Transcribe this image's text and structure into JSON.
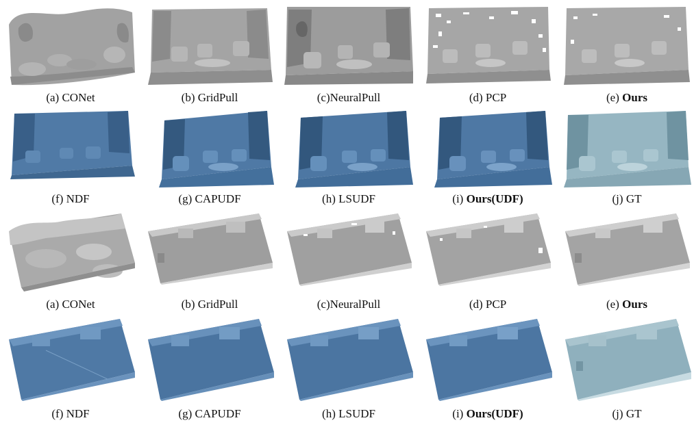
{
  "colors": {
    "gray_mesh": "#9a9a9a",
    "gray_dark": "#6f6f6f",
    "blue_mesh": "#4c76a3",
    "blue_dark": "#2f557e",
    "gt_mesh": "#8fb0bd",
    "gt_dark": "#6a8e9c"
  },
  "rows": [
    {
      "name": "row-1",
      "captions": [
        {
          "prefix": "(a) ",
          "method": "CONet",
          "bold": false
        },
        {
          "prefix": "(b) ",
          "method": "GridPull",
          "bold": false
        },
        {
          "prefix": "(c)",
          "method": "NeuralPull",
          "bold": false
        },
        {
          "prefix": "(d) ",
          "method": "PCP",
          "bold": false
        },
        {
          "prefix": "(e) ",
          "method": "Ours",
          "bold": true
        }
      ]
    },
    {
      "name": "row-2",
      "captions": [
        {
          "prefix": "(f) ",
          "method": "NDF",
          "bold": false
        },
        {
          "prefix": "(g) ",
          "method": "CAPUDF",
          "bold": false
        },
        {
          "prefix": "(h) ",
          "method": "LSUDF",
          "bold": false
        },
        {
          "prefix": "(i) ",
          "method": "Ours(UDF)",
          "bold": true
        },
        {
          "prefix": "(j) ",
          "method": "GT",
          "bold": false
        }
      ]
    },
    {
      "name": "row-3",
      "captions": [
        {
          "prefix": "(a) ",
          "method": "CONet",
          "bold": false
        },
        {
          "prefix": "(b) ",
          "method": "GridPull",
          "bold": false
        },
        {
          "prefix": "(c)",
          "method": "NeuralPull",
          "bold": false
        },
        {
          "prefix": "(d) ",
          "method": "PCP",
          "bold": false
        },
        {
          "prefix": "(e) ",
          "method": "Ours",
          "bold": true
        }
      ]
    },
    {
      "name": "row-4",
      "captions": [
        {
          "prefix": "(f) ",
          "method": "NDF",
          "bold": false
        },
        {
          "prefix": "(g) ",
          "method": "CAPUDF",
          "bold": false
        },
        {
          "prefix": "(h) ",
          "method": "LSUDF",
          "bold": false
        },
        {
          "prefix": "(i) ",
          "method": "Ours(UDF)",
          "bold": true
        },
        {
          "prefix": "(j) ",
          "method": "GT",
          "bold": false
        }
      ]
    }
  ]
}
